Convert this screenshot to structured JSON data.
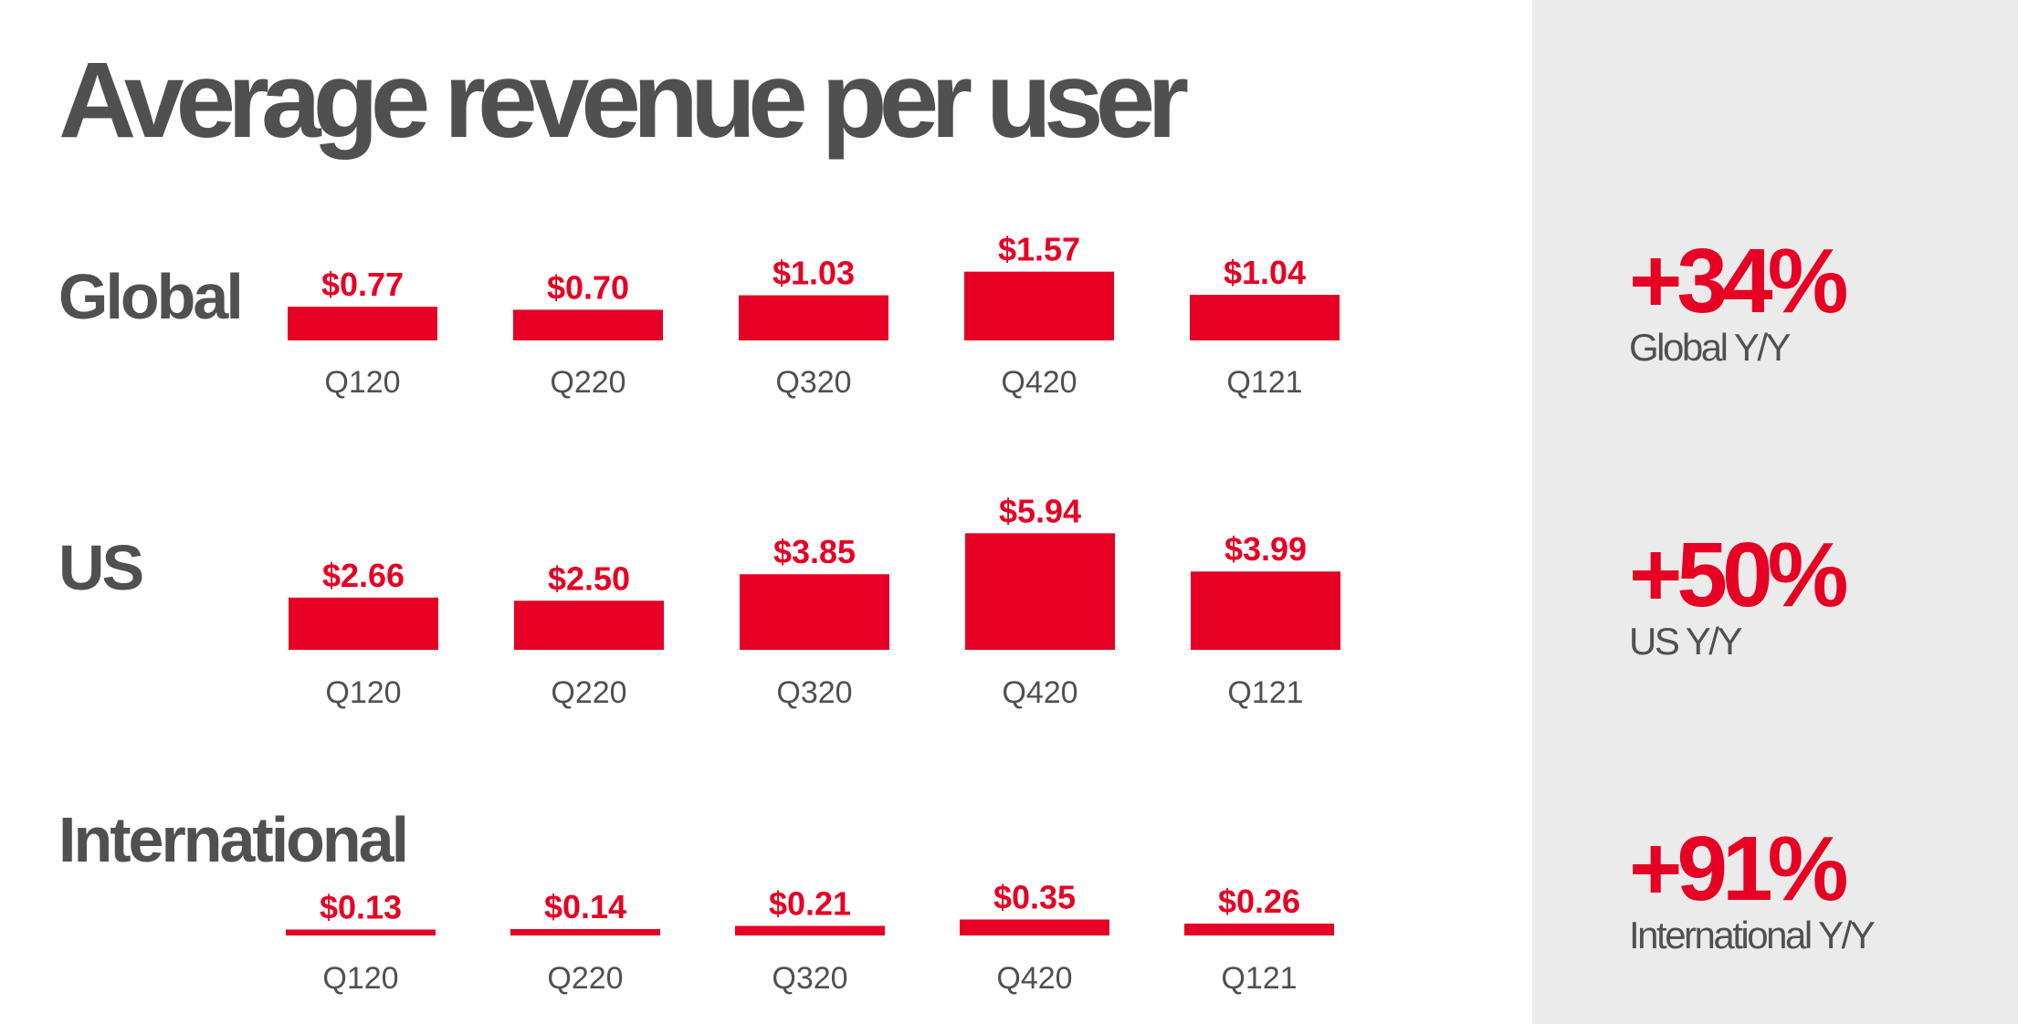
{
  "title": "Average revenue per user",
  "colors": {
    "bar": "#e60023",
    "label": "#e60023",
    "heading": "#505050",
    "tick": "#505050",
    "panel": "#ebebeb"
  },
  "regions": [
    {
      "label": "Global"
    },
    {
      "label": "US"
    },
    {
      "label": "International"
    }
  ],
  "growth": [
    {
      "pct": "+34%",
      "label": "Global Y/Y"
    },
    {
      "pct": "+50%",
      "label": "US Y/Y"
    },
    {
      "pct": "+91%",
      "label": "International Y/Y"
    }
  ],
  "chart_data": [
    {
      "type": "bar",
      "categories": [
        "Q120",
        "Q220",
        "Q320",
        "Q420",
        "Q121"
      ],
      "values": [
        0.77,
        0.7,
        1.03,
        1.57,
        1.04
      ],
      "value_labels": [
        "$0.77",
        "$0.70",
        "$1.03",
        "$1.57",
        "$1.04"
      ],
      "grid": false
    },
    {
      "type": "bar",
      "categories": [
        "Q120",
        "Q220",
        "Q320",
        "Q420",
        "Q121"
      ],
      "values": [
        2.66,
        2.5,
        3.85,
        5.94,
        3.99
      ],
      "value_labels": [
        "$2.66",
        "$2.50",
        "$3.85",
        "$5.94",
        "$3.99"
      ],
      "grid": false
    },
    {
      "type": "bar",
      "categories": [
        "Q120",
        "Q220",
        "Q320",
        "Q420",
        "Q121"
      ],
      "values": [
        0.13,
        0.14,
        0.21,
        0.35,
        0.26
      ],
      "value_labels": [
        "$0.13",
        "$0.14",
        "$0.21",
        "$0.35",
        "$0.26"
      ],
      "grid": false
    }
  ]
}
